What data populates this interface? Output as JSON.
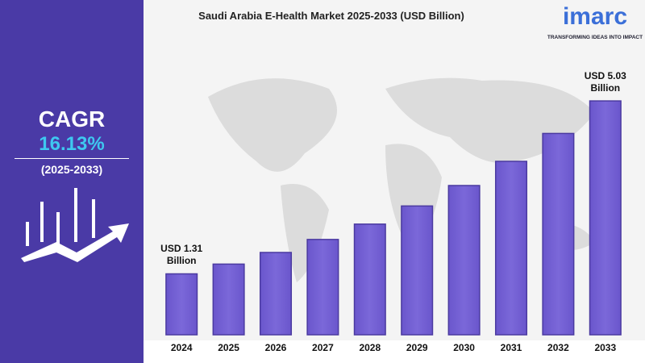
{
  "cagr": {
    "label": "CAGR",
    "value": "16.13%",
    "period": "(2025-2033)"
  },
  "brand": {
    "name": "imarc",
    "tagline": "TRANSFORMING IDEAS INTO IMPACT"
  },
  "chart_data": {
    "type": "bar",
    "title": "Saudi Arabia E-Health Market 2025-2033 (USD Billion)",
    "categories": [
      "2024",
      "2025",
      "2026",
      "2027",
      "2028",
      "2029",
      "2030",
      "2031",
      "2032",
      "2033"
    ],
    "values": [
      1.31,
      1.52,
      1.77,
      2.05,
      2.38,
      2.77,
      3.21,
      3.73,
      4.33,
      5.03
    ],
    "value_labels": [
      "USD 1.31 Billion",
      null,
      null,
      null,
      null,
      null,
      null,
      null,
      null,
      "USD 5.03 Billion"
    ],
    "color": "#7b68d9",
    "ylim": [
      0,
      5.5
    ]
  }
}
